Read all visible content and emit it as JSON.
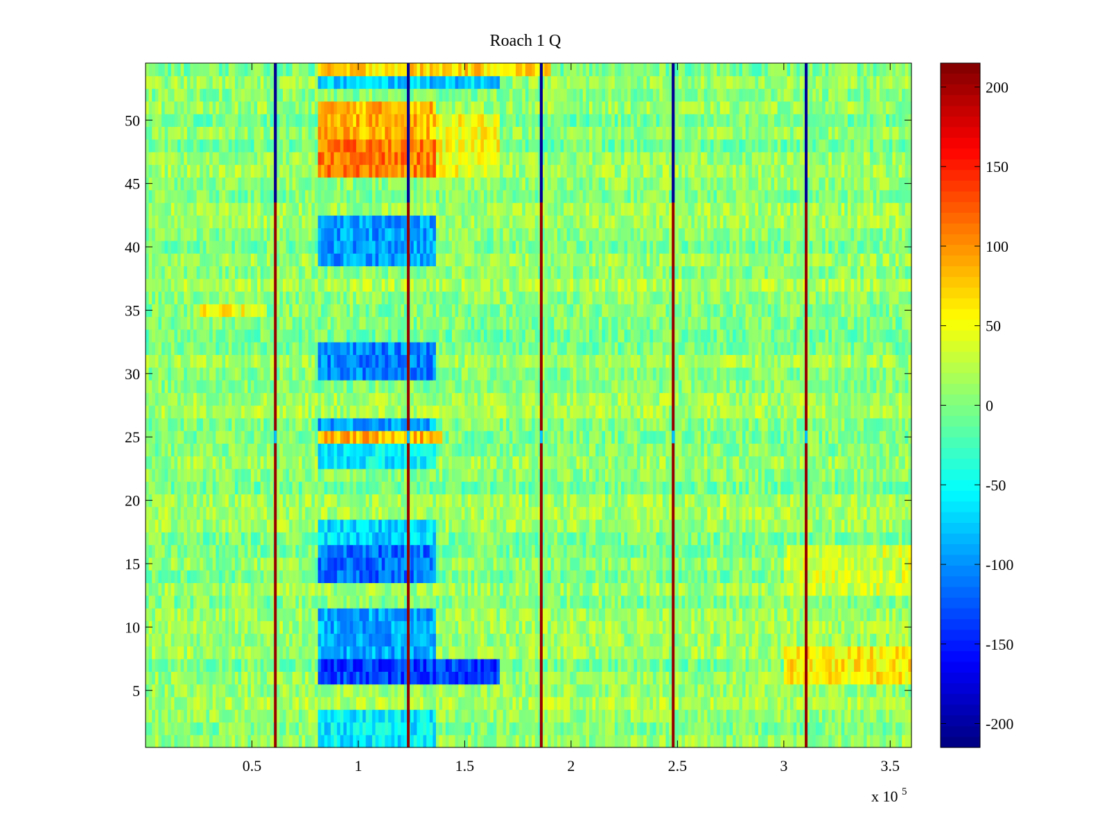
{
  "chart_data": {
    "type": "heatmap",
    "title": "Roach 1 Q",
    "xlabel": "",
    "ylabel": "",
    "x_exponent_label": "x 10",
    "x_exponent_power": "5",
    "xlim": [
      0,
      3.6
    ],
    "ylim": [
      0.5,
      54.5
    ],
    "x_ticks": [
      0.5,
      1,
      1.5,
      2,
      2.5,
      3,
      3.5
    ],
    "x_tick_labels": [
      "0.5",
      "1",
      "1.5",
      "2",
      "2.5",
      "3",
      "3.5"
    ],
    "y_ticks": [
      5,
      10,
      15,
      20,
      25,
      30,
      35,
      40,
      45,
      50
    ],
    "y_tick_labels": [
      "5",
      "10",
      "15",
      "20",
      "25",
      "30",
      "35",
      "40",
      "45",
      "50"
    ],
    "rows": 54,
    "colorbar": {
      "colormap": "jet",
      "clim": [
        -215,
        215
      ],
      "ticks": [
        -200,
        -150,
        -100,
        -50,
        0,
        50,
        100,
        150,
        200
      ],
      "tick_labels": [
        "-200",
        "-150",
        "-100",
        "-50",
        "0",
        "50",
        "100",
        "150",
        "200"
      ]
    },
    "spike_columns": [
      0.61,
      1.235,
      1.86,
      2.48,
      3.105
    ],
    "block_regions": [
      {
        "x_range": [
          0.81,
          1.36
        ],
        "rows": [
          46,
          47,
          48
        ],
        "value": 110
      },
      {
        "x_range": [
          0.81,
          1.36
        ],
        "rows": [
          49,
          50,
          51
        ],
        "value": 85
      },
      {
        "x_range": [
          1.36,
          1.66
        ],
        "rows": [
          46,
          47,
          48,
          49,
          50
        ],
        "value": 50
      },
      {
        "x_range": [
          0.81,
          1.9
        ],
        "rows": [
          54
        ],
        "value": 70
      },
      {
        "x_range": [
          0.81,
          1.66
        ],
        "rows": [
          53
        ],
        "value": -75
      },
      {
        "x_range": [
          0.81,
          1.36
        ],
        "rows": [
          39,
          40,
          41,
          42
        ],
        "value": -95
      },
      {
        "x_range": [
          0.81,
          1.36
        ],
        "rows": [
          30,
          31,
          32
        ],
        "value": -105
      },
      {
        "x_range": [
          0.81,
          1.36
        ],
        "rows": [
          26
        ],
        "value": -90
      },
      {
        "x_range": [
          0.81,
          1.4
        ],
        "rows": [
          25
        ],
        "value": 85
      },
      {
        "x_range": [
          0.81,
          1.36
        ],
        "rows": [
          24,
          23
        ],
        "value": -60
      },
      {
        "x_range": [
          0.81,
          1.36
        ],
        "rows": [
          14,
          15,
          16
        ],
        "value": -115
      },
      {
        "x_range": [
          0.81,
          1.36
        ],
        "rows": [
          17,
          18
        ],
        "value": -70
      },
      {
        "x_range": [
          0.81,
          1.66
        ],
        "rows": [
          6,
          7
        ],
        "value": -135
      },
      {
        "x_range": [
          0.81,
          1.36
        ],
        "rows": [
          8,
          9,
          10,
          11
        ],
        "value": -90
      },
      {
        "x_range": [
          0.81,
          1.36
        ],
        "rows": [
          1,
          2,
          3
        ],
        "value": -60
      },
      {
        "x_range": [
          3.0,
          3.6
        ],
        "rows": [
          6,
          7,
          8
        ],
        "value": 60
      },
      {
        "x_range": [
          3.0,
          3.6
        ],
        "rows": [
          13,
          14,
          15,
          16
        ],
        "value": 35
      },
      {
        "x_range": [
          0.25,
          0.57
        ],
        "rows": [
          35
        ],
        "value": 50
      }
    ]
  }
}
